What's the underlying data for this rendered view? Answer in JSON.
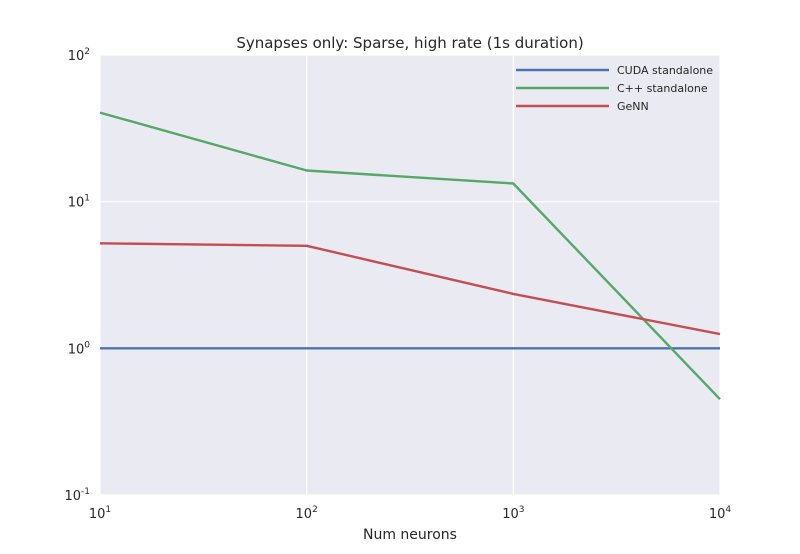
{
  "chart_data": {
    "type": "line",
    "title": "Synapses only: Sparse, high rate (1s duration)",
    "xlabel": "Num neurons",
    "ylabel": "",
    "xscale": "log",
    "yscale": "log",
    "xlim": [
      10,
      10000
    ],
    "ylim": [
      0.1,
      100
    ],
    "grid": true,
    "legend_position": "top-right",
    "x_ticks": [
      {
        "base": "10",
        "exp": "1"
      },
      {
        "base": "10",
        "exp": "2"
      },
      {
        "base": "10",
        "exp": "3"
      },
      {
        "base": "10",
        "exp": "4"
      }
    ],
    "y_ticks": [
      {
        "base": "10",
        "exp": "-1"
      },
      {
        "base": "10",
        "exp": "0"
      },
      {
        "base": "10",
        "exp": "1"
      },
      {
        "base": "10",
        "exp": "2"
      }
    ],
    "x": [
      10,
      100,
      1000,
      10000
    ],
    "series": [
      {
        "name": "CUDA standalone",
        "color": "#4c72b0",
        "values": [
          1.0,
          1.0,
          1.0,
          1.0
        ]
      },
      {
        "name": "C++ standalone",
        "color": "#55a868",
        "values": [
          40.5,
          16.3,
          13.3,
          0.45
        ]
      },
      {
        "name": "GeNN",
        "color": "#c44e52",
        "values": [
          5.2,
          5.0,
          2.35,
          1.25
        ]
      }
    ]
  }
}
